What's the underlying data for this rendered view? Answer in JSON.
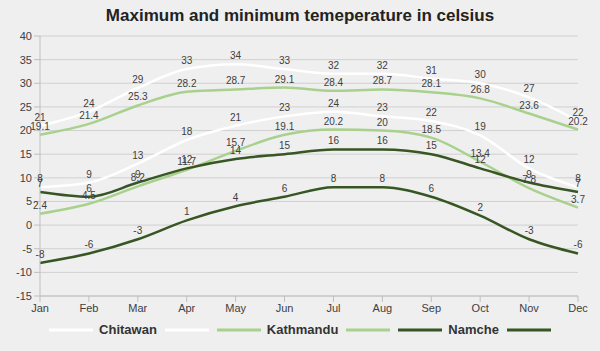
{
  "chart_data": {
    "type": "line",
    "title": "Maximum and minimum temeperature in celsius",
    "categories": [
      "Jan",
      "Feb",
      "Mar",
      "Apr",
      "May",
      "Jun",
      "Jul",
      "Aug",
      "Sep",
      "Oct",
      "Nov",
      "Dec"
    ],
    "series": [
      {
        "name": "Chitawan",
        "color": "#ffffff",
        "values": [
          21,
          24,
          29,
          33,
          34,
          33,
          32,
          32,
          31,
          30,
          27,
          22
        ]
      },
      {
        "name": null,
        "color": "#ffffff",
        "values": [
          8,
          9,
          13,
          18,
          21,
          23,
          24,
          23,
          22,
          19,
          12,
          8
        ]
      },
      {
        "name": "Kathmandu",
        "color": "#a9d18e",
        "values": [
          19.1,
          21.4,
          25.3,
          28.2,
          28.7,
          29.1,
          28.4,
          28.7,
          28.1,
          26.8,
          23.6,
          20.2
        ]
      },
      {
        "name": null,
        "color": "#a9d18e",
        "values": [
          2.4,
          4.5,
          8.2,
          11.7,
          15.7,
          19.1,
          20.2,
          20,
          18.5,
          13.4,
          7.8,
          3.7
        ]
      },
      {
        "name": "Namche",
        "color": "#375623",
        "values": [
          7,
          6,
          9,
          12,
          14,
          15,
          16,
          16,
          15,
          12,
          9,
          7
        ]
      },
      {
        "name": null,
        "color": "#375623",
        "values": [
          -8,
          -6,
          -3,
          1,
          4,
          6,
          8,
          8,
          6,
          2,
          -3,
          -6
        ]
      }
    ],
    "ylim": [
      -15,
      40
    ],
    "yticks": [
      -15,
      -10,
      -5,
      0,
      5,
      10,
      15,
      20,
      25,
      30,
      35,
      40
    ],
    "grid": true,
    "data_labels": true,
    "line_style": "smooth",
    "legend": "bottom"
  }
}
